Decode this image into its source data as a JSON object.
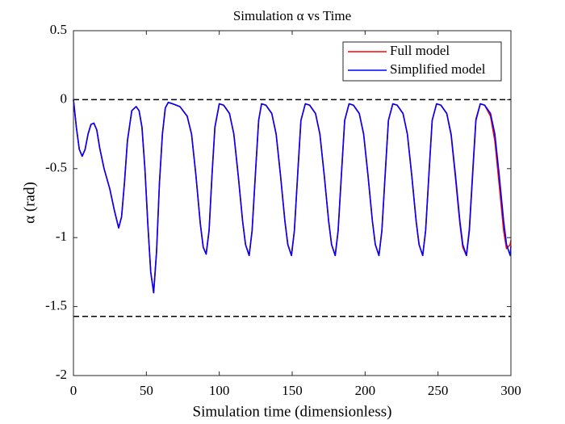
{
  "chart_data": {
    "type": "line",
    "title": "Simulation α vs Time",
    "xlabel": "Simulation time (dimensionless)",
    "ylabel": "α (rad)",
    "x": [
      0,
      2,
      4,
      6,
      8,
      10,
      12,
      14,
      16,
      18,
      21,
      25,
      28,
      31,
      33,
      35,
      37,
      40,
      43,
      45,
      47,
      49,
      51,
      53,
      55,
      57,
      59,
      61,
      63,
      65,
      68,
      73,
      78,
      81,
      84,
      87,
      89,
      91,
      93,
      95,
      97,
      100,
      103,
      107,
      110,
      113,
      116,
      118,
      120.5,
      122.5,
      125,
      127,
      129,
      132,
      136,
      139,
      142,
      145,
      147,
      149.5,
      151.5,
      154,
      156,
      159,
      162,
      166,
      169,
      172,
      175,
      177,
      179.5,
      181.5,
      184,
      186,
      189,
      192,
      196,
      199,
      202,
      205,
      207,
      209.5,
      211.5,
      214,
      216,
      219,
      222,
      226,
      229,
      232,
      235,
      237,
      239.5,
      241.5,
      244,
      246,
      249,
      252,
      256,
      259,
      262,
      265,
      267,
      269.5,
      271.5,
      274,
      276,
      279,
      282,
      286,
      289,
      292,
      295,
      297,
      299.5,
      300
    ],
    "series": [
      {
        "name": "Full model",
        "color": "#ff0000",
        "values": [
          0,
          -0.2,
          -0.36,
          -0.41,
          -0.36,
          -0.25,
          -0.18,
          -0.17,
          -0.22,
          -0.35,
          -0.5,
          -0.65,
          -0.8,
          -0.93,
          -0.85,
          -0.6,
          -0.3,
          -0.08,
          -0.05,
          -0.08,
          -0.2,
          -0.5,
          -0.9,
          -1.25,
          -1.4,
          -1.1,
          -0.6,
          -0.25,
          -0.06,
          -0.02,
          -0.03,
          -0.05,
          -0.12,
          -0.25,
          -0.55,
          -0.9,
          -1.07,
          -1.12,
          -0.95,
          -0.55,
          -0.2,
          -0.03,
          -0.04,
          -0.1,
          -0.25,
          -0.55,
          -0.88,
          -1.05,
          -1.13,
          -0.95,
          -0.5,
          -0.15,
          -0.03,
          -0.04,
          -0.1,
          -0.25,
          -0.55,
          -0.88,
          -1.05,
          -1.13,
          -0.95,
          -0.5,
          -0.15,
          -0.03,
          -0.04,
          -0.1,
          -0.25,
          -0.55,
          -0.88,
          -1.05,
          -1.13,
          -0.95,
          -0.5,
          -0.15,
          -0.03,
          -0.04,
          -0.1,
          -0.25,
          -0.55,
          -0.88,
          -1.05,
          -1.13,
          -0.95,
          -0.5,
          -0.15,
          -0.03,
          -0.04,
          -0.1,
          -0.25,
          -0.55,
          -0.88,
          -1.05,
          -1.13,
          -0.95,
          -0.5,
          -0.15,
          -0.03,
          -0.04,
          -0.1,
          -0.26,
          -0.57,
          -0.9,
          -1.07,
          -1.13,
          -0.93,
          -0.48,
          -0.14,
          -0.03,
          -0.04,
          -0.12,
          -0.3,
          -0.62,
          -0.95,
          -1.08,
          -1.05,
          -1.02
        ]
      },
      {
        "name": "Simplified model",
        "color": "#0000ff",
        "values": [
          0,
          -0.2,
          -0.36,
          -0.41,
          -0.36,
          -0.25,
          -0.18,
          -0.17,
          -0.22,
          -0.35,
          -0.5,
          -0.65,
          -0.8,
          -0.93,
          -0.85,
          -0.6,
          -0.3,
          -0.08,
          -0.05,
          -0.08,
          -0.2,
          -0.5,
          -0.9,
          -1.25,
          -1.4,
          -1.1,
          -0.6,
          -0.25,
          -0.06,
          -0.02,
          -0.03,
          -0.05,
          -0.12,
          -0.25,
          -0.55,
          -0.9,
          -1.07,
          -1.12,
          -0.95,
          -0.55,
          -0.2,
          -0.03,
          -0.04,
          -0.1,
          -0.25,
          -0.55,
          -0.88,
          -1.05,
          -1.13,
          -0.95,
          -0.5,
          -0.15,
          -0.03,
          -0.04,
          -0.1,
          -0.25,
          -0.55,
          -0.88,
          -1.05,
          -1.13,
          -0.95,
          -0.5,
          -0.15,
          -0.03,
          -0.04,
          -0.1,
          -0.25,
          -0.55,
          -0.88,
          -1.05,
          -1.13,
          -0.95,
          -0.5,
          -0.15,
          -0.03,
          -0.04,
          -0.1,
          -0.25,
          -0.55,
          -0.88,
          -1.05,
          -1.13,
          -0.95,
          -0.5,
          -0.15,
          -0.03,
          -0.04,
          -0.1,
          -0.25,
          -0.55,
          -0.88,
          -1.05,
          -1.13,
          -0.95,
          -0.5,
          -0.15,
          -0.03,
          -0.04,
          -0.1,
          -0.25,
          -0.55,
          -0.88,
          -1.05,
          -1.13,
          -0.95,
          -0.5,
          -0.15,
          -0.03,
          -0.04,
          -0.1,
          -0.25,
          -0.55,
          -0.88,
          -1.05,
          -1.13,
          -1.06
        ]
      }
    ],
    "hlines": [
      0,
      -1.5708
    ],
    "xlim": [
      0,
      300
    ],
    "xticks": [
      0,
      50,
      100,
      150,
      200,
      250,
      300
    ],
    "ylim": [
      -2,
      0.5
    ],
    "yticks": [
      -2,
      -1.5,
      -1,
      -0.5,
      0,
      0.5
    ],
    "grid": false,
    "legend": "northeast"
  }
}
